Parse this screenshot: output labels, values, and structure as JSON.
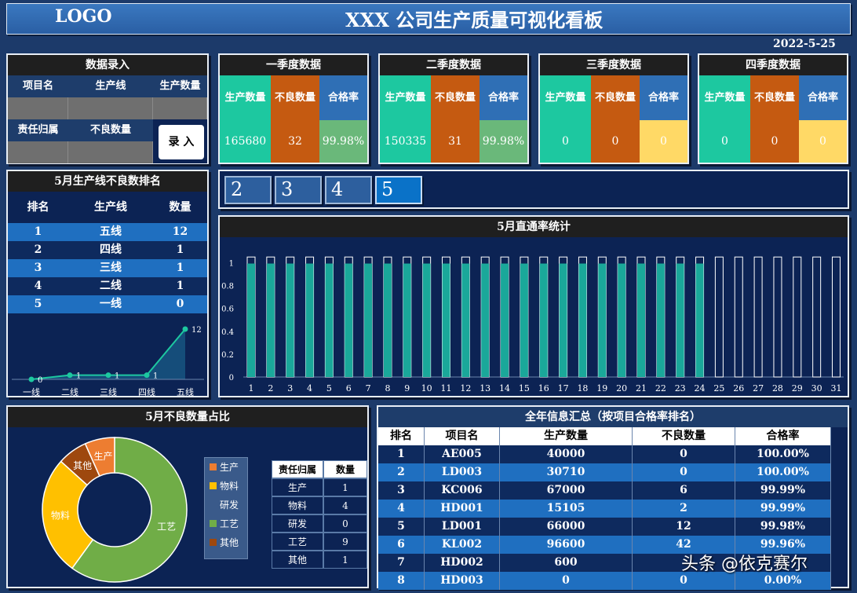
{
  "header": {
    "logo": "LOGO",
    "title": "XXX 公司生产质量可视化看板",
    "date": "2022-5-25"
  },
  "entry": {
    "title": "数据录入",
    "labels": [
      "项目名",
      "生产线",
      "生产数量"
    ],
    "labels2": [
      "责任归属",
      "不良数量"
    ],
    "button": "录 入"
  },
  "quarters": [
    {
      "title": "一季度数据",
      "labels": [
        "生产数量",
        "不良数量",
        "合格率"
      ],
      "values": [
        "165680",
        "32",
        "99.98%"
      ]
    },
    {
      "title": "二季度数据",
      "labels": [
        "生产数量",
        "不良数量",
        "合格率"
      ],
      "values": [
        "150335",
        "31",
        "99.98%"
      ]
    },
    {
      "title": "三季度数据",
      "labels": [
        "生产数量",
        "不良数量",
        "合格率"
      ],
      "values": [
        "0",
        "0",
        "0"
      ]
    },
    {
      "title": "四季度数据",
      "labels": [
        "生产数量",
        "不良数量",
        "合格率"
      ],
      "values": [
        "0",
        "0",
        "0"
      ]
    }
  ],
  "ranking": {
    "title": "5月生产线不良数排名",
    "headers": [
      "排名",
      "生产线",
      "数量"
    ],
    "rows": [
      [
        "1",
        "五线",
        "12"
      ],
      [
        "2",
        "四线",
        "1"
      ],
      [
        "3",
        "三线",
        "1"
      ],
      [
        "4",
        "二线",
        "1"
      ],
      [
        "5",
        "一线",
        "0"
      ]
    ]
  },
  "month_tabs": [
    "2",
    "3",
    "4",
    "5"
  ],
  "chart_data": [
    {
      "type": "line",
      "categories": [
        "一线",
        "二线",
        "三线",
        "四线",
        "五线"
      ],
      "values": [
        0,
        1,
        1,
        1,
        12
      ]
    },
    {
      "type": "bar",
      "title": "5月直通率统计",
      "categories": [
        "1",
        "2",
        "3",
        "4",
        "5",
        "6",
        "7",
        "8",
        "9",
        "10",
        "11",
        "12",
        "13",
        "14",
        "15",
        "16",
        "17",
        "18",
        "19",
        "20",
        "21",
        "22",
        "23",
        "24",
        "25",
        "26",
        "27",
        "28",
        "29",
        "30",
        "31"
      ],
      "values": [
        1,
        1,
        1,
        1,
        1,
        1,
        1,
        1,
        1,
        1,
        1,
        1,
        1,
        1,
        1,
        1,
        1,
        1,
        1,
        1,
        1,
        1,
        1,
        1,
        0,
        0,
        0,
        0,
        0,
        0,
        0
      ],
      "yticks": [
        "0",
        "0.2",
        "0.4",
        "0.6",
        "0.8",
        "1"
      ],
      "ylim": [
        0,
        1.1
      ]
    },
    {
      "type": "pie",
      "title": "5月不良数量占比",
      "categories": [
        "生产",
        "物料",
        "研发",
        "工艺",
        "其他"
      ],
      "values": [
        1,
        4,
        0,
        9,
        1
      ],
      "colors": [
        "#ed7d31",
        "#ffc000",
        "#5b9bd5",
        "#70ad47",
        "#9e480e"
      ]
    }
  ],
  "pie_table": {
    "headers": [
      "责任归属",
      "数量"
    ],
    "rows": [
      [
        "生产",
        "1"
      ],
      [
        "物料",
        "4"
      ],
      [
        "研发",
        "0"
      ],
      [
        "工艺",
        "9"
      ],
      [
        "其他",
        "1"
      ]
    ]
  },
  "annual": {
    "title": "全年信息汇总（按项目合格率排名）",
    "headers": [
      "排名",
      "项目名",
      "生产数量",
      "不良数量",
      "合格率"
    ],
    "rows": [
      [
        "1",
        "AE005",
        "40000",
        "0",
        "100.00%"
      ],
      [
        "2",
        "LD003",
        "30710",
        "0",
        "100.00%"
      ],
      [
        "3",
        "KC006",
        "67000",
        "6",
        "99.99%"
      ],
      [
        "4",
        "HD001",
        "15105",
        "2",
        "99.99%"
      ],
      [
        "5",
        "LD001",
        "66000",
        "12",
        "99.98%"
      ],
      [
        "6",
        "KL002",
        "96600",
        "42",
        "99.96%"
      ],
      [
        "7",
        "HD002",
        "600",
        "",
        ""
      ],
      [
        "8",
        "HD003",
        "0",
        "0",
        "0.00%"
      ]
    ]
  },
  "watermark": "头条 @依克赛尔"
}
